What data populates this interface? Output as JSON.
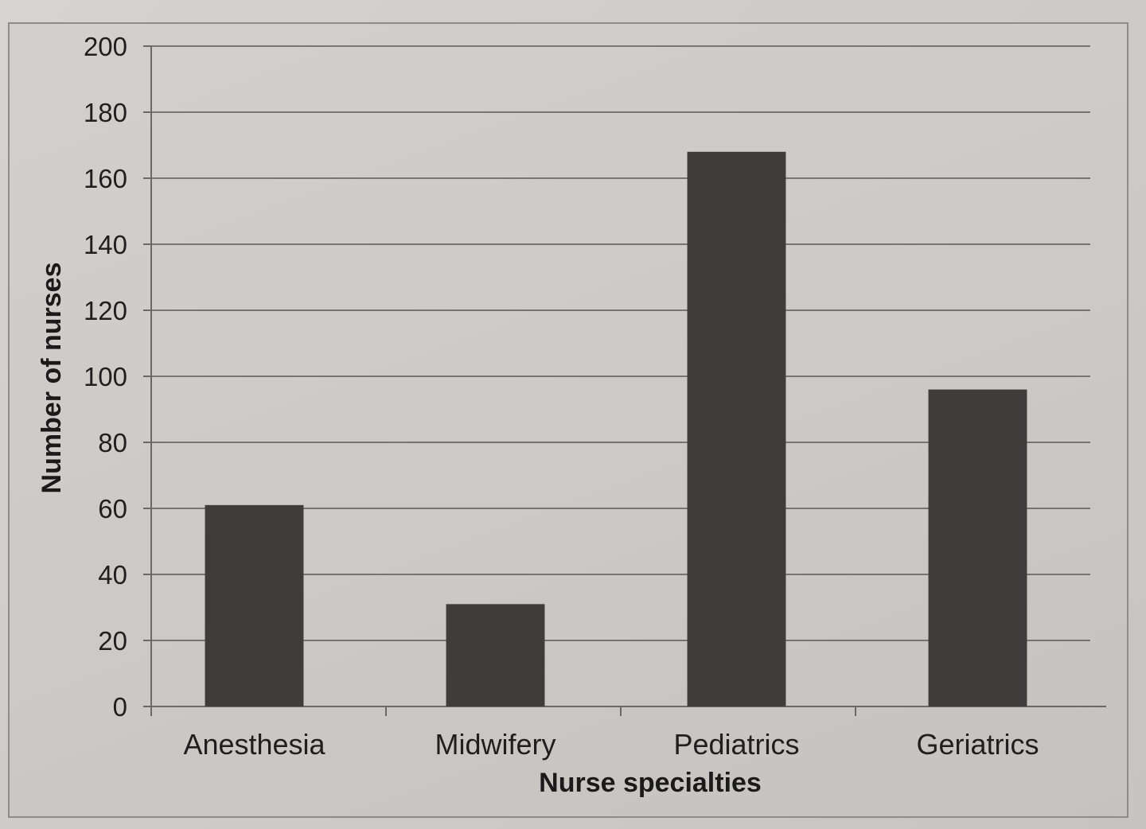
{
  "chart_data": {
    "type": "bar",
    "title": "",
    "xlabel": "Nurse specialties",
    "ylabel": "Number of nurses",
    "categories": [
      "Anesthesia",
      "Midwifery",
      "Pediatrics",
      "Geriatrics"
    ],
    "values": [
      61,
      31,
      168,
      96
    ],
    "ylim": [
      0,
      200
    ],
    "yticks": [
      0,
      20,
      40,
      60,
      80,
      100,
      120,
      140,
      160,
      180,
      200
    ],
    "grid": true,
    "legend": "none",
    "colors": {
      "bar": "#3e3d3b",
      "grid": "#5a5956",
      "axis": "#6a6965"
    }
  }
}
